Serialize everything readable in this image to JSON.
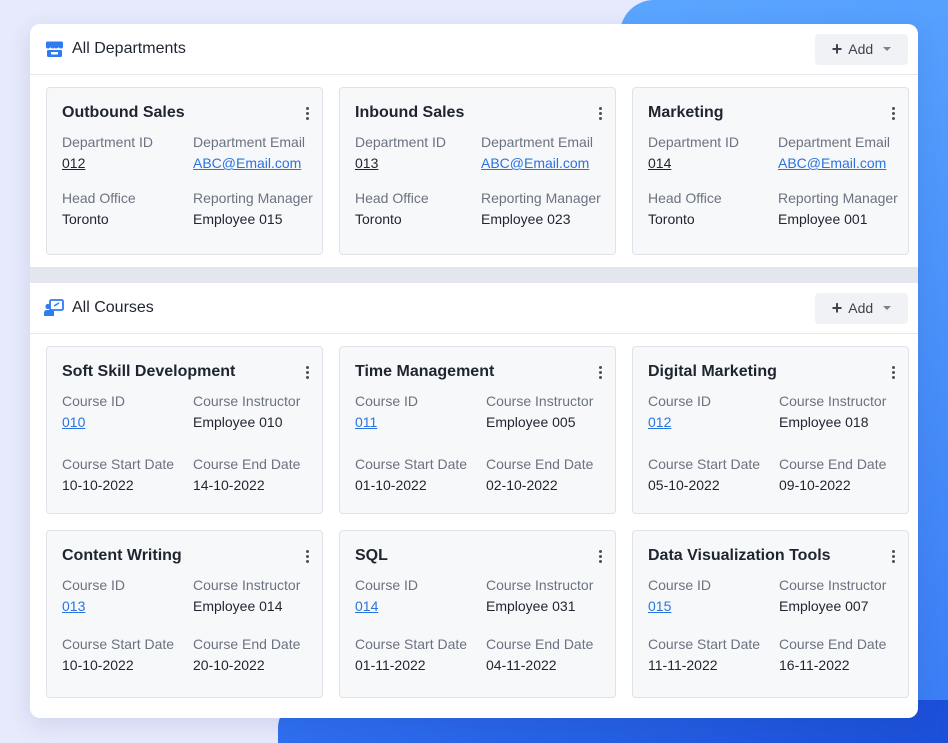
{
  "departments": {
    "title": "All Departments",
    "add_label": "Add",
    "cards": [
      {
        "name": "Outbound Sales",
        "id_label": "Department ID",
        "id": "012",
        "email_label": "Department Email",
        "email": "ABC@Email.com",
        "office_label": "Head Office",
        "office": "Toronto",
        "manager_label": "Reporting Manager",
        "manager": "Employee 015"
      },
      {
        "name": "Inbound Sales",
        "id_label": "Department ID",
        "id": "013",
        "email_label": "Department Email",
        "email": "ABC@Email.com",
        "office_label": "Head Office",
        "office": "Toronto",
        "manager_label": "Reporting Manager",
        "manager": "Employee 023"
      },
      {
        "name": "Marketing",
        "id_label": "Department ID",
        "id": "014",
        "email_label": "Department Email",
        "email": "ABC@Email.com",
        "office_label": "Head Office",
        "office": "Toronto",
        "manager_label": "Reporting Manager",
        "manager": "Employee 001"
      }
    ]
  },
  "courses": {
    "title": "All Courses",
    "add_label": "Add",
    "cards": [
      {
        "name": "Soft Skill Development",
        "id_label": "Course ID",
        "id": "010",
        "instructor_label": "Course Instructor",
        "instructor": "Employee 010",
        "start_label": "Course Start Date",
        "start": "10-10-2022",
        "end_label": "Course End Date",
        "end": "14-10-2022"
      },
      {
        "name": "Time Management",
        "id_label": "Course ID",
        "id": "011",
        "instructor_label": "Course Instructor",
        "instructor": "Employee 005",
        "start_label": "Course Start Date",
        "start": "01-10-2022",
        "end_label": "Course End Date",
        "end": "02-10-2022"
      },
      {
        "name": "Digital Marketing",
        "id_label": "Course ID",
        "id": "012",
        "instructor_label": "Course Instructor",
        "instructor": "Employee 018",
        "start_label": "Course Start Date",
        "start": "05-10-2022",
        "end_label": "Course End Date",
        "end": "09-10-2022"
      },
      {
        "name": "Content Writing",
        "id_label": "Course ID",
        "id": "013",
        "instructor_label": "Course Instructor",
        "instructor": "Employee 014",
        "start_label": "Course Start Date",
        "start": "10-10-2022",
        "end_label": "Course End Date",
        "end": "20-10-2022"
      },
      {
        "name": "SQL",
        "id_label": "Course ID",
        "id": "014",
        "instructor_label": "Course Instructor",
        "instructor": "Employee 031",
        "start_label": "Course Start Date",
        "start": "01-11-2022",
        "end_label": "Course End Date",
        "end": "04-11-2022"
      },
      {
        "name": "Data Visualization Tools",
        "id_label": "Course ID",
        "id": "015",
        "instructor_label": "Course Instructor",
        "instructor": "Employee 007",
        "start_label": "Course Start Date",
        "start": "11-11-2022",
        "end_label": "Course End Date",
        "end": "16-11-2022"
      }
    ]
  },
  "icons": {
    "departments": "store-icon",
    "courses": "presentation-icon",
    "add": "plus-icon",
    "dropdown": "caret-down-icon",
    "menu": "kebab-menu-icon"
  },
  "colors": {
    "accent": "#2b73df",
    "icon_blue": "#2f7cf0"
  }
}
